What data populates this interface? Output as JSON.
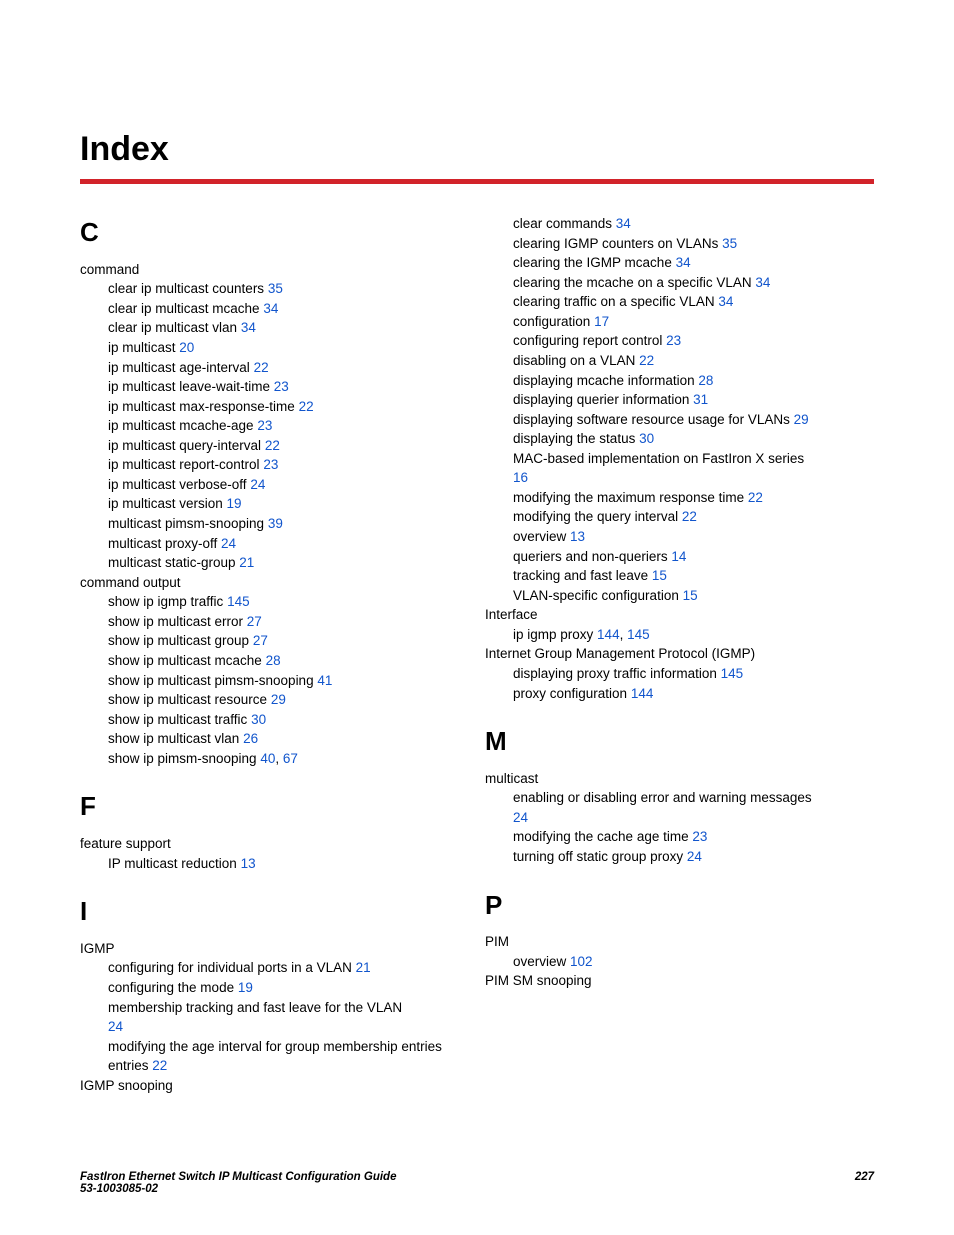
{
  "title": "Index",
  "colors": {
    "rule": "#d2232a",
    "link": "#1155cc",
    "text": "#000000",
    "bg": "#ffffff"
  },
  "left": {
    "C": {
      "letter": "C",
      "groups": [
        {
          "topic": "command",
          "items": [
            {
              "t": "clear ip multicast counters ",
              "p": "35"
            },
            {
              "t": "clear ip multicast mcache ",
              "p": "34"
            },
            {
              "t": "clear ip multicast vlan ",
              "p": "34"
            },
            {
              "t": "ip multicast ",
              "p": "20"
            },
            {
              "t": "ip multicast age-interval ",
              "p": "22"
            },
            {
              "t": "ip multicast leave-wait-time ",
              "p": "23"
            },
            {
              "t": "ip multicast max-response-time ",
              "p": "22"
            },
            {
              "t": "ip multicast mcache-age ",
              "p": "23"
            },
            {
              "t": "ip multicast query-interval ",
              "p": "22"
            },
            {
              "t": "ip multicast report-control ",
              "p": "23"
            },
            {
              "t": "ip multicast verbose-off ",
              "p": "24"
            },
            {
              "t": "ip multicast version ",
              "p": "19"
            },
            {
              "t": "multicast pimsm-snooping ",
              "p": "39"
            },
            {
              "t": "multicast proxy-off ",
              "p": "24"
            },
            {
              "t": "multicast static-group ",
              "p": "21"
            }
          ]
        },
        {
          "topic": "command output",
          "items": [
            {
              "t": "show ip igmp traffic ",
              "p": "145"
            },
            {
              "t": "show ip multicast error ",
              "p": "27"
            },
            {
              "t": "show ip multicast group ",
              "p": "27"
            },
            {
              "t": "show ip multicast mcache ",
              "p": "28"
            },
            {
              "t": "show ip multicast pimsm-snooping ",
              "p": "41"
            },
            {
              "t": "show ip multicast resource ",
              "p": "29"
            },
            {
              "t": "show ip multicast traffic ",
              "p": "30"
            },
            {
              "t": "show ip multicast vlan ",
              "p": "26"
            },
            {
              "t": "show ip pimsm-snooping ",
              "p": "40",
              "p2": "67"
            }
          ]
        }
      ]
    },
    "F": {
      "letter": "F",
      "groups": [
        {
          "topic": "feature support",
          "items": [
            {
              "t": "IP multicast reduction ",
              "p": "13"
            }
          ]
        }
      ]
    },
    "I": {
      "letter": "I",
      "groups": [
        {
          "topic": "IGMP",
          "items": [
            {
              "t": "configuring for individual ports in a VLAN ",
              "p": "21"
            },
            {
              "t": "configuring the mode ",
              "p": "19"
            },
            {
              "t": "membership tracking and fast leave for the VLAN ",
              "p": "24",
              "wrap": true
            },
            {
              "t": "modifying the age interval for group membership entries ",
              "p": "22",
              "wrap": true
            }
          ]
        },
        {
          "topic": "IGMP snooping",
          "items": []
        }
      ]
    }
  },
  "right": {
    "cont": [
      {
        "t": "clear commands ",
        "p": "34"
      },
      {
        "t": "clearing IGMP counters on VLANs ",
        "p": "35"
      },
      {
        "t": "clearing the IGMP mcache ",
        "p": "34"
      },
      {
        "t": "clearing the mcache on a specific VLAN ",
        "p": "34"
      },
      {
        "t": "clearing traffic on a specific VLAN ",
        "p": "34"
      },
      {
        "t": "configuration ",
        "p": "17"
      },
      {
        "t": "configuring report control ",
        "p": "23"
      },
      {
        "t": "disabling on a VLAN ",
        "p": "22"
      },
      {
        "t": "displaying mcache information ",
        "p": "28"
      },
      {
        "t": "displaying querier information ",
        "p": "31"
      },
      {
        "t": "displaying software resource usage for VLANs ",
        "p": "29"
      },
      {
        "t": "displaying the status ",
        "p": "30"
      },
      {
        "t": "MAC-based implementation on FastIron X series ",
        "p": "16",
        "wrap": true
      },
      {
        "t": "modifying the maximum response time ",
        "p": "22"
      },
      {
        "t": "modifying the query interval ",
        "p": "22"
      },
      {
        "t": "overview ",
        "p": "13"
      },
      {
        "t": "queriers and non-queriers ",
        "p": "14"
      },
      {
        "t": "tracking and fast leave ",
        "p": "15"
      },
      {
        "t": "VLAN-specific configuration ",
        "p": "15"
      }
    ],
    "Interface": {
      "topic": "Interface",
      "items": [
        {
          "t": "ip igmp proxy ",
          "p": "144",
          "p2": "145"
        }
      ]
    },
    "IGMPproto": {
      "topic": "Internet Group Management Protocol (IGMP)",
      "items": [
        {
          "t": "displaying proxy traffic information ",
          "p": "145"
        },
        {
          "t": "proxy configuration ",
          "p": "144"
        }
      ]
    },
    "M": {
      "letter": "M",
      "groups": [
        {
          "topic": "multicast",
          "items": [
            {
              "t": "enabling or disabling error and warning messages ",
              "p": "24",
              "wrap": true
            },
            {
              "t": "modifying the cache age time ",
              "p": "23"
            },
            {
              "t": "turning off static group proxy ",
              "p": "24"
            }
          ]
        }
      ]
    },
    "P": {
      "letter": "P",
      "groups": [
        {
          "topic": "PIM",
          "items": [
            {
              "t": "overview ",
              "p": "102"
            }
          ]
        },
        {
          "topic": "PIM SM snooping",
          "items": []
        }
      ]
    }
  },
  "footer": {
    "line1": "FastIron Ethernet Switch IP Multicast Configuration Guide",
    "line2": "53-1003085-02",
    "page": "227"
  }
}
